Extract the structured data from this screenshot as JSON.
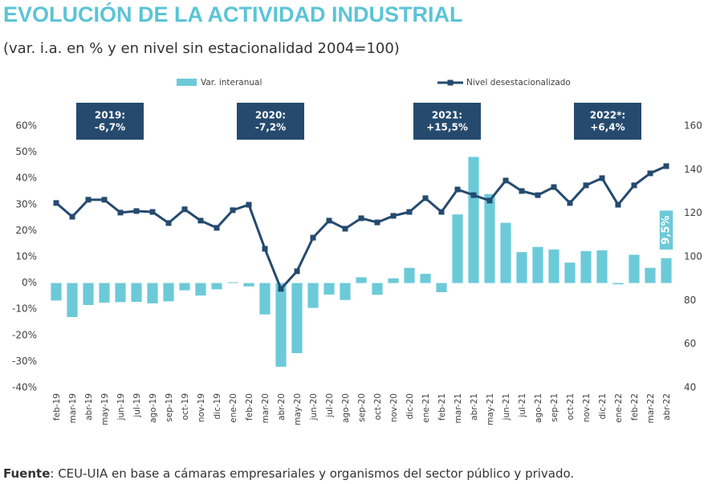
{
  "chart_data": {
    "type": "bar-line",
    "title": "EVOLUCIÓN DE LA ACTIVIDAD INDUSTRIAL",
    "subtitle": "(var. i.a. en % y en nivel sin estacionalidad 2004=100)",
    "categories": [
      "feb-19",
      "mar-19",
      "abr-19",
      "may-19",
      "jun-19",
      "jul-19",
      "ago-19",
      "sep-19",
      "oct-19",
      "nov-19",
      "dic-19",
      "ene-20",
      "feb-20",
      "mar-20",
      "abr-20",
      "may-20",
      "jun-20",
      "jul-20",
      "ago-20",
      "sep-20",
      "oct-20",
      "nov-20",
      "dic-20",
      "ene-21",
      "feb-21",
      "mar-21",
      "abr-21",
      "may-21",
      "jun-21",
      "jul-21",
      "ago-21",
      "sep-21",
      "oct-21",
      "nov-21",
      "dic-21",
      "ene-22",
      "feb-22",
      "mar-22",
      "abr-22"
    ],
    "series": [
      {
        "name": "Var. interanual",
        "color": "#6ccad8",
        "type": "bar",
        "values": [
          -6.7,
          -13,
          -8.4,
          -7.5,
          -7.3,
          -7.2,
          -7.8,
          -7,
          -2.8,
          -4.8,
          -2.4,
          0.3,
          -1.3,
          -12,
          -32,
          -26.8,
          -9.5,
          -4.4,
          -6.5,
          2.2,
          -4.5,
          1.8,
          5.8,
          3.5,
          -3.5,
          26.2,
          48.2,
          34,
          23,
          11.8,
          13.8,
          12.8,
          7.8,
          12.2,
          12.5,
          -0.5,
          10.8,
          5.8,
          9.5
        ],
        "value_labels": [
          null,
          null,
          null,
          null,
          null,
          null,
          null,
          null,
          null,
          null,
          null,
          null,
          null,
          null,
          null,
          null,
          null,
          null,
          null,
          null,
          null,
          null,
          null,
          null,
          null,
          null,
          null,
          null,
          null,
          null,
          null,
          null,
          null,
          null,
          null,
          null,
          null,
          null,
          "9,5%"
        ]
      },
      {
        "name": "Nivel desestacionalizado",
        "color": "#254a6e",
        "type": "line",
        "axis": "y2",
        "values": [
          124.7,
          118.4,
          126.2,
          126.2,
          120.3,
          121,
          120.6,
          115.5,
          121.8,
          116.6,
          113.3,
          121.4,
          123.9,
          103.7,
          85.3,
          93.4,
          108.8,
          116.6,
          112.9,
          117.7,
          115.8,
          118.8,
          120.6,
          126.9,
          120.6,
          130.9,
          128.3,
          125.8,
          135,
          130.2,
          128.3,
          132,
          124.7,
          132.8,
          136.1,
          123.9,
          132.8,
          138.3,
          141.6
        ]
      }
    ],
    "ylim": [
      -40,
      60
    ],
    "yticks": [
      {
        "value": -40,
        "label": "-40%"
      },
      {
        "value": -30,
        "label": "-30%"
      },
      {
        "value": -20,
        "label": "-20%"
      },
      {
        "value": -10,
        "label": "-10%"
      },
      {
        "value": 0,
        "label": "0%"
      },
      {
        "value": 10,
        "label": "10%"
      },
      {
        "value": 20,
        "label": "20%"
      },
      {
        "value": 30,
        "label": "30%"
      },
      {
        "value": 40,
        "label": "40%"
      },
      {
        "value": 50,
        "label": "50%"
      },
      {
        "value": 60,
        "label": "60%"
      }
    ],
    "y2lim": [
      40,
      160
    ],
    "y2ticks": [
      40,
      60,
      80,
      100,
      120,
      140,
      160
    ],
    "annotations": [
      {
        "year": "2019:",
        "value": "-6,7%"
      },
      {
        "year": "2020:",
        "value": "-7,2%"
      },
      {
        "year": "2021:",
        "value": "+15,5%"
      },
      {
        "year": "2022*:",
        "value": "+6,4%"
      }
    ],
    "source": {
      "label": "Fuente",
      "text": ": CEU-UIA en base a cámaras empresariales y organismos del sector público y privado."
    }
  }
}
